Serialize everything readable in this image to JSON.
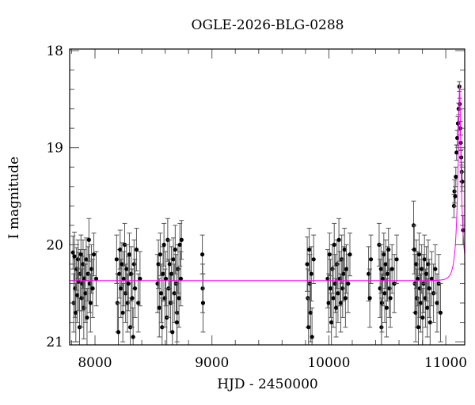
{
  "chart_data": {
    "type": "scatter",
    "title": "OGLE-2026-BLG-0288",
    "xlabel": "HJD - 2450000",
    "ylabel": "I magnitude",
    "xlim": [
      7783,
      11162
    ],
    "ylim": [
      21,
      18
    ],
    "y_inverted": true,
    "xticks": [
      8000,
      9000,
      10000,
      11000
    ],
    "xtick_labels": [
      "8000",
      "9000",
      "10000",
      "11000"
    ],
    "yticks": [
      18,
      19,
      20,
      21
    ],
    "ytick_labels": [
      "18",
      "19",
      "20",
      "21"
    ],
    "grid": false,
    "colors": {
      "points": "#000000",
      "errorbars": "#555555",
      "model": "#ff00ff"
    },
    "model": {
      "baseline_mag": 20.37,
      "t0": 11118,
      "u0": 0.157,
      "tE": 40
    },
    "points_format": [
      "hjd",
      "mag",
      "err"
    ],
    "points": [
      [
        7812,
        20.08,
        0.17
      ],
      [
        7818,
        20.6,
        0.3
      ],
      [
        7824,
        20.12,
        0.25
      ],
      [
        7830,
        20.45,
        0.3
      ],
      [
        7836,
        20.7,
        0.3
      ],
      [
        7842,
        20.25,
        0.22
      ],
      [
        7848,
        20.52,
        0.28
      ],
      [
        7855,
        20.15,
        0.2
      ],
      [
        7862,
        20.38,
        0.3
      ],
      [
        7868,
        20.85,
        0.3
      ],
      [
        7874,
        20.3,
        0.25
      ],
      [
        7880,
        20.1,
        0.2
      ],
      [
        7886,
        20.55,
        0.3
      ],
      [
        7892,
        20.4,
        0.28
      ],
      [
        7898,
        20.2,
        0.25
      ],
      [
        7904,
        20.65,
        0.32
      ],
      [
        7910,
        20.35,
        0.3
      ],
      [
        7918,
        20.5,
        0.3
      ],
      [
        7925,
        20.15,
        0.22
      ],
      [
        7932,
        20.75,
        0.3
      ],
      [
        7940,
        20.3,
        0.28
      ],
      [
        7948,
        19.95,
        0.22
      ],
      [
        7955,
        20.4,
        0.3
      ],
      [
        7962,
        20.6,
        0.3
      ],
      [
        7970,
        20.25,
        0.25
      ],
      [
        7980,
        20.45,
        0.3
      ],
      [
        7990,
        20.1,
        0.22
      ],
      [
        8010,
        20.35,
        0.28
      ],
      [
        8185,
        20.15,
        0.25
      ],
      [
        8192,
        20.6,
        0.3
      ],
      [
        8200,
        20.9,
        0.3
      ],
      [
        8208,
        20.3,
        0.25
      ],
      [
        8215,
        20.05,
        0.2
      ],
      [
        8222,
        20.45,
        0.3
      ],
      [
        8230,
        20.2,
        0.22
      ],
      [
        8238,
        20.7,
        0.3
      ],
      [
        8246,
        20.35,
        0.28
      ],
      [
        8254,
        20.0,
        0.22
      ],
      [
        8262,
        20.5,
        0.3
      ],
      [
        8270,
        20.25,
        0.25
      ],
      [
        8278,
        20.6,
        0.3
      ],
      [
        8286,
        20.4,
        0.28
      ],
      [
        8294,
        20.1,
        0.22
      ],
      [
        8302,
        20.85,
        0.3
      ],
      [
        8310,
        20.3,
        0.28
      ],
      [
        8318,
        20.55,
        0.3
      ],
      [
        8326,
        20.95,
        0.3
      ],
      [
        8334,
        20.2,
        0.25
      ],
      [
        8342,
        20.45,
        0.3
      ],
      [
        8355,
        20.05,
        0.22
      ],
      [
        8370,
        20.6,
        0.3
      ],
      [
        8385,
        20.35,
        0.28
      ],
      [
        8535,
        20.4,
        0.3
      ],
      [
        8542,
        20.2,
        0.25
      ],
      [
        8550,
        20.65,
        0.3
      ],
      [
        8558,
        20.1,
        0.22
      ],
      [
        8566,
        20.5,
        0.3
      ],
      [
        8574,
        20.85,
        0.3
      ],
      [
        8582,
        20.3,
        0.28
      ],
      [
        8590,
        20.0,
        0.22
      ],
      [
        8598,
        20.55,
        0.3
      ],
      [
        8606,
        20.35,
        0.28
      ],
      [
        8614,
        20.75,
        0.3
      ],
      [
        8622,
        19.95,
        0.22
      ],
      [
        8630,
        20.45,
        0.3
      ],
      [
        8638,
        20.2,
        0.25
      ],
      [
        8646,
        20.6,
        0.3
      ],
      [
        8654,
        20.3,
        0.28
      ],
      [
        8662,
        20.9,
        0.3
      ],
      [
        8670,
        20.15,
        0.22
      ],
      [
        8678,
        20.5,
        0.3
      ],
      [
        8686,
        20.05,
        0.25
      ],
      [
        8694,
        20.4,
        0.3
      ],
      [
        8702,
        20.7,
        0.3
      ],
      [
        8710,
        20.25,
        0.25
      ],
      [
        8718,
        20.55,
        0.3
      ],
      [
        8726,
        20.0,
        0.22
      ],
      [
        8734,
        20.35,
        0.28
      ],
      [
        8740,
        19.95,
        0.2
      ],
      [
        8700,
        20.8,
        0.3
      ],
      [
        8918,
        20.1,
        0.2
      ],
      [
        8921,
        20.45,
        0.25
      ],
      [
        8924,
        20.6,
        0.3
      ],
      [
        9815,
        20.2,
        0.28
      ],
      [
        9820,
        20.55,
        0.3
      ],
      [
        9826,
        20.85,
        0.3
      ],
      [
        9832,
        20.05,
        0.22
      ],
      [
        9838,
        20.4,
        0.3
      ],
      [
        9844,
        20.7,
        0.3
      ],
      [
        9850,
        20.3,
        0.28
      ],
      [
        9856,
        20.95,
        0.3
      ],
      [
        9870,
        20.15,
        0.25
      ],
      [
        9990,
        20.35,
        0.3
      ],
      [
        9998,
        20.6,
        0.3
      ],
      [
        10006,
        20.1,
        0.22
      ],
      [
        10014,
        20.45,
        0.3
      ],
      [
        10022,
        20.8,
        0.3
      ],
      [
        10030,
        20.25,
        0.25
      ],
      [
        10038,
        20.55,
        0.3
      ],
      [
        10046,
        20.0,
        0.22
      ],
      [
        10054,
        20.4,
        0.3
      ],
      [
        10062,
        20.65,
        0.3
      ],
      [
        10070,
        20.2,
        0.25
      ],
      [
        10078,
        20.5,
        0.3
      ],
      [
        10086,
        19.95,
        0.22
      ],
      [
        10094,
        20.35,
        0.28
      ],
      [
        10102,
        20.6,
        0.3
      ],
      [
        10110,
        20.15,
        0.25
      ],
      [
        10118,
        20.45,
        0.3
      ],
      [
        10126,
        20.3,
        0.28
      ],
      [
        10134,
        20.05,
        0.22
      ],
      [
        10142,
        20.55,
        0.3
      ],
      [
        10150,
        20.25,
        0.25
      ],
      [
        10165,
        20.4,
        0.3
      ],
      [
        10180,
        20.1,
        0.22
      ],
      [
        10340,
        20.3,
        0.28
      ],
      [
        10350,
        20.55,
        0.3
      ],
      [
        10360,
        20.15,
        0.25
      ],
      [
        10430,
        20.0,
        0.22
      ],
      [
        10438,
        20.45,
        0.3
      ],
      [
        10446,
        20.25,
        0.25
      ],
      [
        10450,
        20.85,
        0.3
      ],
      [
        10454,
        20.6,
        0.3
      ],
      [
        10462,
        20.35,
        0.28
      ],
      [
        10470,
        20.1,
        0.22
      ],
      [
        10478,
        20.5,
        0.3
      ],
      [
        10486,
        20.2,
        0.25
      ],
      [
        10494,
        20.65,
        0.3
      ],
      [
        10502,
        20.3,
        0.28
      ],
      [
        10510,
        20.05,
        0.22
      ],
      [
        10518,
        20.45,
        0.3
      ],
      [
        10526,
        20.55,
        0.3
      ],
      [
        10540,
        20.25,
        0.25
      ],
      [
        10560,
        20.4,
        0.3
      ],
      [
        10580,
        20.15,
        0.25
      ],
      [
        10725,
        19.8,
        0.25
      ],
      [
        10730,
        20.05,
        0.25
      ],
      [
        10736,
        20.4,
        0.3
      ],
      [
        10742,
        20.7,
        0.3
      ],
      [
        10748,
        20.2,
        0.25
      ],
      [
        10754,
        20.55,
        0.3
      ],
      [
        10760,
        20.35,
        0.28
      ],
      [
        10766,
        20.85,
        0.3
      ],
      [
        10772,
        20.1,
        0.22
      ],
      [
        10778,
        20.45,
        0.3
      ],
      [
        10786,
        20.6,
        0.3
      ],
      [
        10794,
        20.25,
        0.25
      ],
      [
        10802,
        20.75,
        0.3
      ],
      [
        10810,
        20.4,
        0.3
      ],
      [
        10818,
        20.15,
        0.25
      ],
      [
        10826,
        20.55,
        0.3
      ],
      [
        10834,
        20.3,
        0.28
      ],
      [
        10842,
        20.65,
        0.3
      ],
      [
        10850,
        20.2,
        0.25
      ],
      [
        10858,
        20.45,
        0.3
      ],
      [
        10866,
        20.8,
        0.3
      ],
      [
        10880,
        20.35,
        0.28
      ],
      [
        10895,
        20.5,
        0.3
      ],
      [
        10910,
        20.25,
        0.25
      ],
      [
        10925,
        20.6,
        0.3
      ],
      [
        10940,
        20.4,
        0.3
      ],
      [
        10955,
        20.7,
        0.3
      ],
      [
        11070,
        19.6,
        0.12
      ],
      [
        11074,
        19.45,
        0.12
      ],
      [
        11080,
        19.5,
        0.1
      ],
      [
        11086,
        19.3,
        0.1
      ],
      [
        11092,
        19.05,
        0.08
      ],
      [
        11098,
        18.9,
        0.08
      ],
      [
        11104,
        18.75,
        0.07
      ],
      [
        11110,
        18.6,
        0.06
      ],
      [
        11116,
        18.37,
        0.05
      ],
      [
        11120,
        18.55,
        0.06
      ],
      [
        11124,
        18.8,
        0.07
      ],
      [
        11128,
        18.95,
        0.08
      ],
      [
        11132,
        19.1,
        0.08
      ],
      [
        11136,
        19.25,
        0.1
      ],
      [
        11140,
        19.35,
        0.1
      ],
      [
        11148,
        19.85,
        0.15
      ]
    ]
  }
}
